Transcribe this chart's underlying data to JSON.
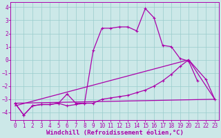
{
  "bg_color": "#cce8e8",
  "line_color": "#aa00aa",
  "grid_color": "#99cccc",
  "xlabel": "Windchill (Refroidissement éolien,°C)",
  "xlabel_fontsize": 6.5,
  "tick_fontsize": 5.5,
  "ylim": [
    -4.6,
    4.4
  ],
  "xlim": [
    -0.5,
    23.5
  ],
  "yticks": [
    -4,
    -3,
    -2,
    -1,
    0,
    1,
    2,
    3,
    4
  ],
  "xticks": [
    0,
    1,
    2,
    3,
    4,
    5,
    6,
    7,
    8,
    9,
    10,
    11,
    12,
    13,
    14,
    15,
    16,
    17,
    18,
    19,
    20,
    21,
    22,
    23
  ],
  "line1": {
    "x": [
      0,
      1,
      2,
      3,
      4,
      5,
      6,
      7,
      8,
      9,
      10,
      11,
      12,
      13,
      14,
      15,
      16,
      17,
      18,
      19,
      20,
      21
    ],
    "y": [
      -3.3,
      -4.2,
      -3.5,
      -3.4,
      -3.4,
      -3.3,
      -2.6,
      -3.3,
      -3.3,
      0.7,
      2.4,
      2.4,
      2.5,
      2.5,
      2.2,
      3.9,
      3.2,
      1.1,
      1.0,
      0.1,
      -0.1,
      -1.6
    ]
  },
  "line2": {
    "x": [
      0,
      1,
      2,
      3,
      4,
      5,
      6,
      7,
      8,
      9,
      10,
      11,
      12,
      13,
      14,
      15,
      16,
      17,
      18,
      19,
      20,
      22,
      23
    ],
    "y": [
      -3.3,
      -4.2,
      -3.5,
      -3.4,
      -3.4,
      -3.3,
      -3.5,
      -3.4,
      -3.3,
      -3.3,
      -3.0,
      -2.9,
      -2.8,
      -2.7,
      -2.5,
      -2.3,
      -2.0,
      -1.6,
      -1.1,
      -0.5,
      0.0,
      -1.5,
      -3.0
    ]
  },
  "line3": {
    "x": [
      0,
      23
    ],
    "y": [
      -3.3,
      -3.0
    ]
  },
  "line4": {
    "x": [
      0,
      20,
      23
    ],
    "y": [
      -3.5,
      0.0,
      -3.0
    ]
  }
}
